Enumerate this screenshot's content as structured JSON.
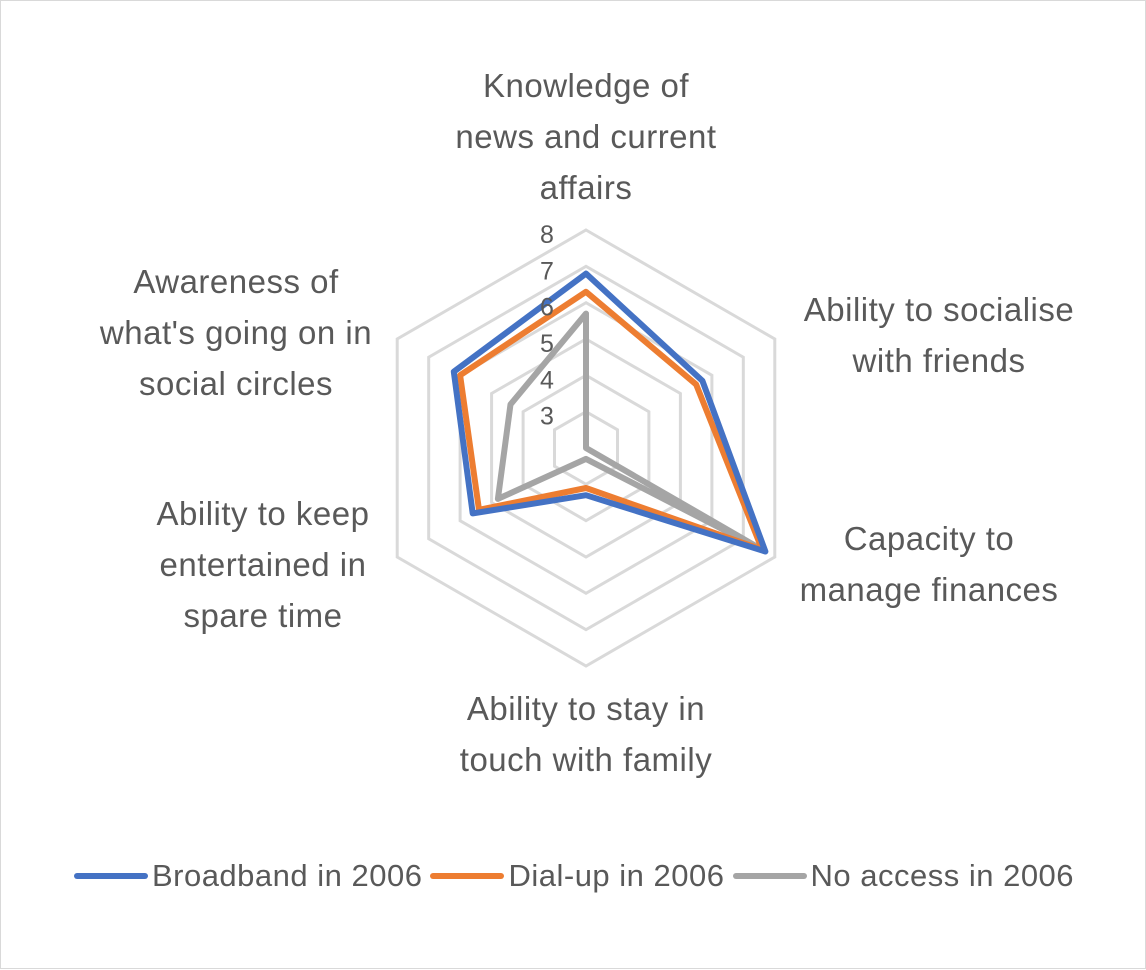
{
  "chart_data": {
    "type": "radar",
    "title": "",
    "axis": {
      "min": 2,
      "max": 8,
      "ticks": [
        3,
        4,
        5,
        6,
        7,
        8
      ],
      "tick_labels": [
        "3",
        "4",
        "5",
        "6",
        "7",
        "8"
      ],
      "grid": true
    },
    "categories": [
      "Knowledge of\nnews and current\naffairs",
      "Ability to socialise\nwith friends",
      "Capacity to\nmanage finances",
      "Ability to stay in\ntouch with family",
      "Ability to keep\nentertained in\nspare time",
      "Awareness of\nwhat's going on in\nsocial circles"
    ],
    "series": [
      {
        "name": "Broadband in 2006",
        "color": "#4472C4",
        "values": [
          6.8,
          5.7,
          7.7,
          3.3,
          5.6,
          6.2
        ]
      },
      {
        "name": "Dial-up in 2006",
        "color": "#ED7D31",
        "values": [
          6.3,
          5.5,
          7.6,
          3.1,
          5.4,
          6.0
        ]
      },
      {
        "name": "No access in 2006",
        "color": "#A5A5A5",
        "values": [
          5.7,
          2.0,
          7.6,
          2.3,
          4.8,
          4.4
        ]
      }
    ],
    "legend": "bottom"
  }
}
